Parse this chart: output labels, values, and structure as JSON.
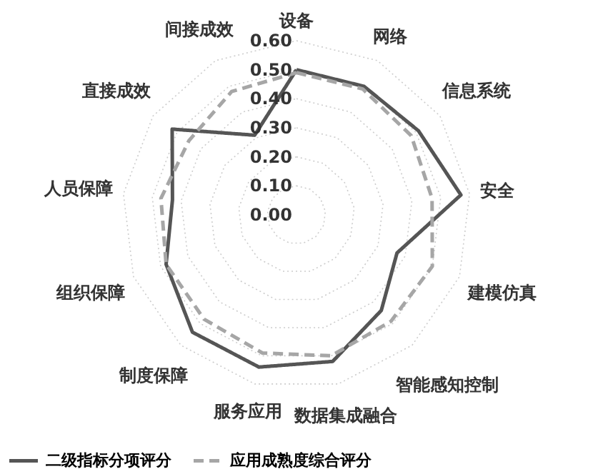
{
  "chart_data": {
    "type": "radar",
    "categories": [
      "设备",
      "网络",
      "信息系统",
      "安全",
      "建模仿真",
      "智能感知控制",
      "数据集成融合",
      "服务应用",
      "制度保障",
      "组织保障",
      "人员保障",
      "直接成效",
      "间接成效"
    ],
    "series": [
      {
        "name": "二级指标分项评分",
        "color": "#555555",
        "line_style": "solid",
        "values": [
          0.5,
          0.5,
          0.51,
          0.57,
          0.37,
          0.44,
          0.52,
          0.54,
          0.54,
          0.48,
          0.43,
          0.52,
          0.31
        ]
      },
      {
        "name": "应用成熟度综合评分",
        "color": "#a6a6a6",
        "line_style": "dashed",
        "values": [
          0.49,
          0.49,
          0.48,
          0.47,
          0.5,
          0.49,
          0.5,
          0.49,
          0.48,
          0.48,
          0.47,
          0.45,
          0.48
        ]
      }
    ],
    "ylim": [
      0,
      0.6
    ],
    "yticks": [
      {
        "value": 0,
        "label": "0.00"
      },
      {
        "value": 0.1,
        "label": "0.10"
      },
      {
        "value": 0.2,
        "label": "0.20"
      },
      {
        "value": 0.3,
        "label": "0.30"
      },
      {
        "value": 0.4,
        "label": "0.40"
      },
      {
        "value": 0.5,
        "label": "0.50"
      },
      {
        "value": 0.6,
        "label": "0.60"
      }
    ],
    "grid": true,
    "legend": "bottom",
    "marker": "none"
  }
}
